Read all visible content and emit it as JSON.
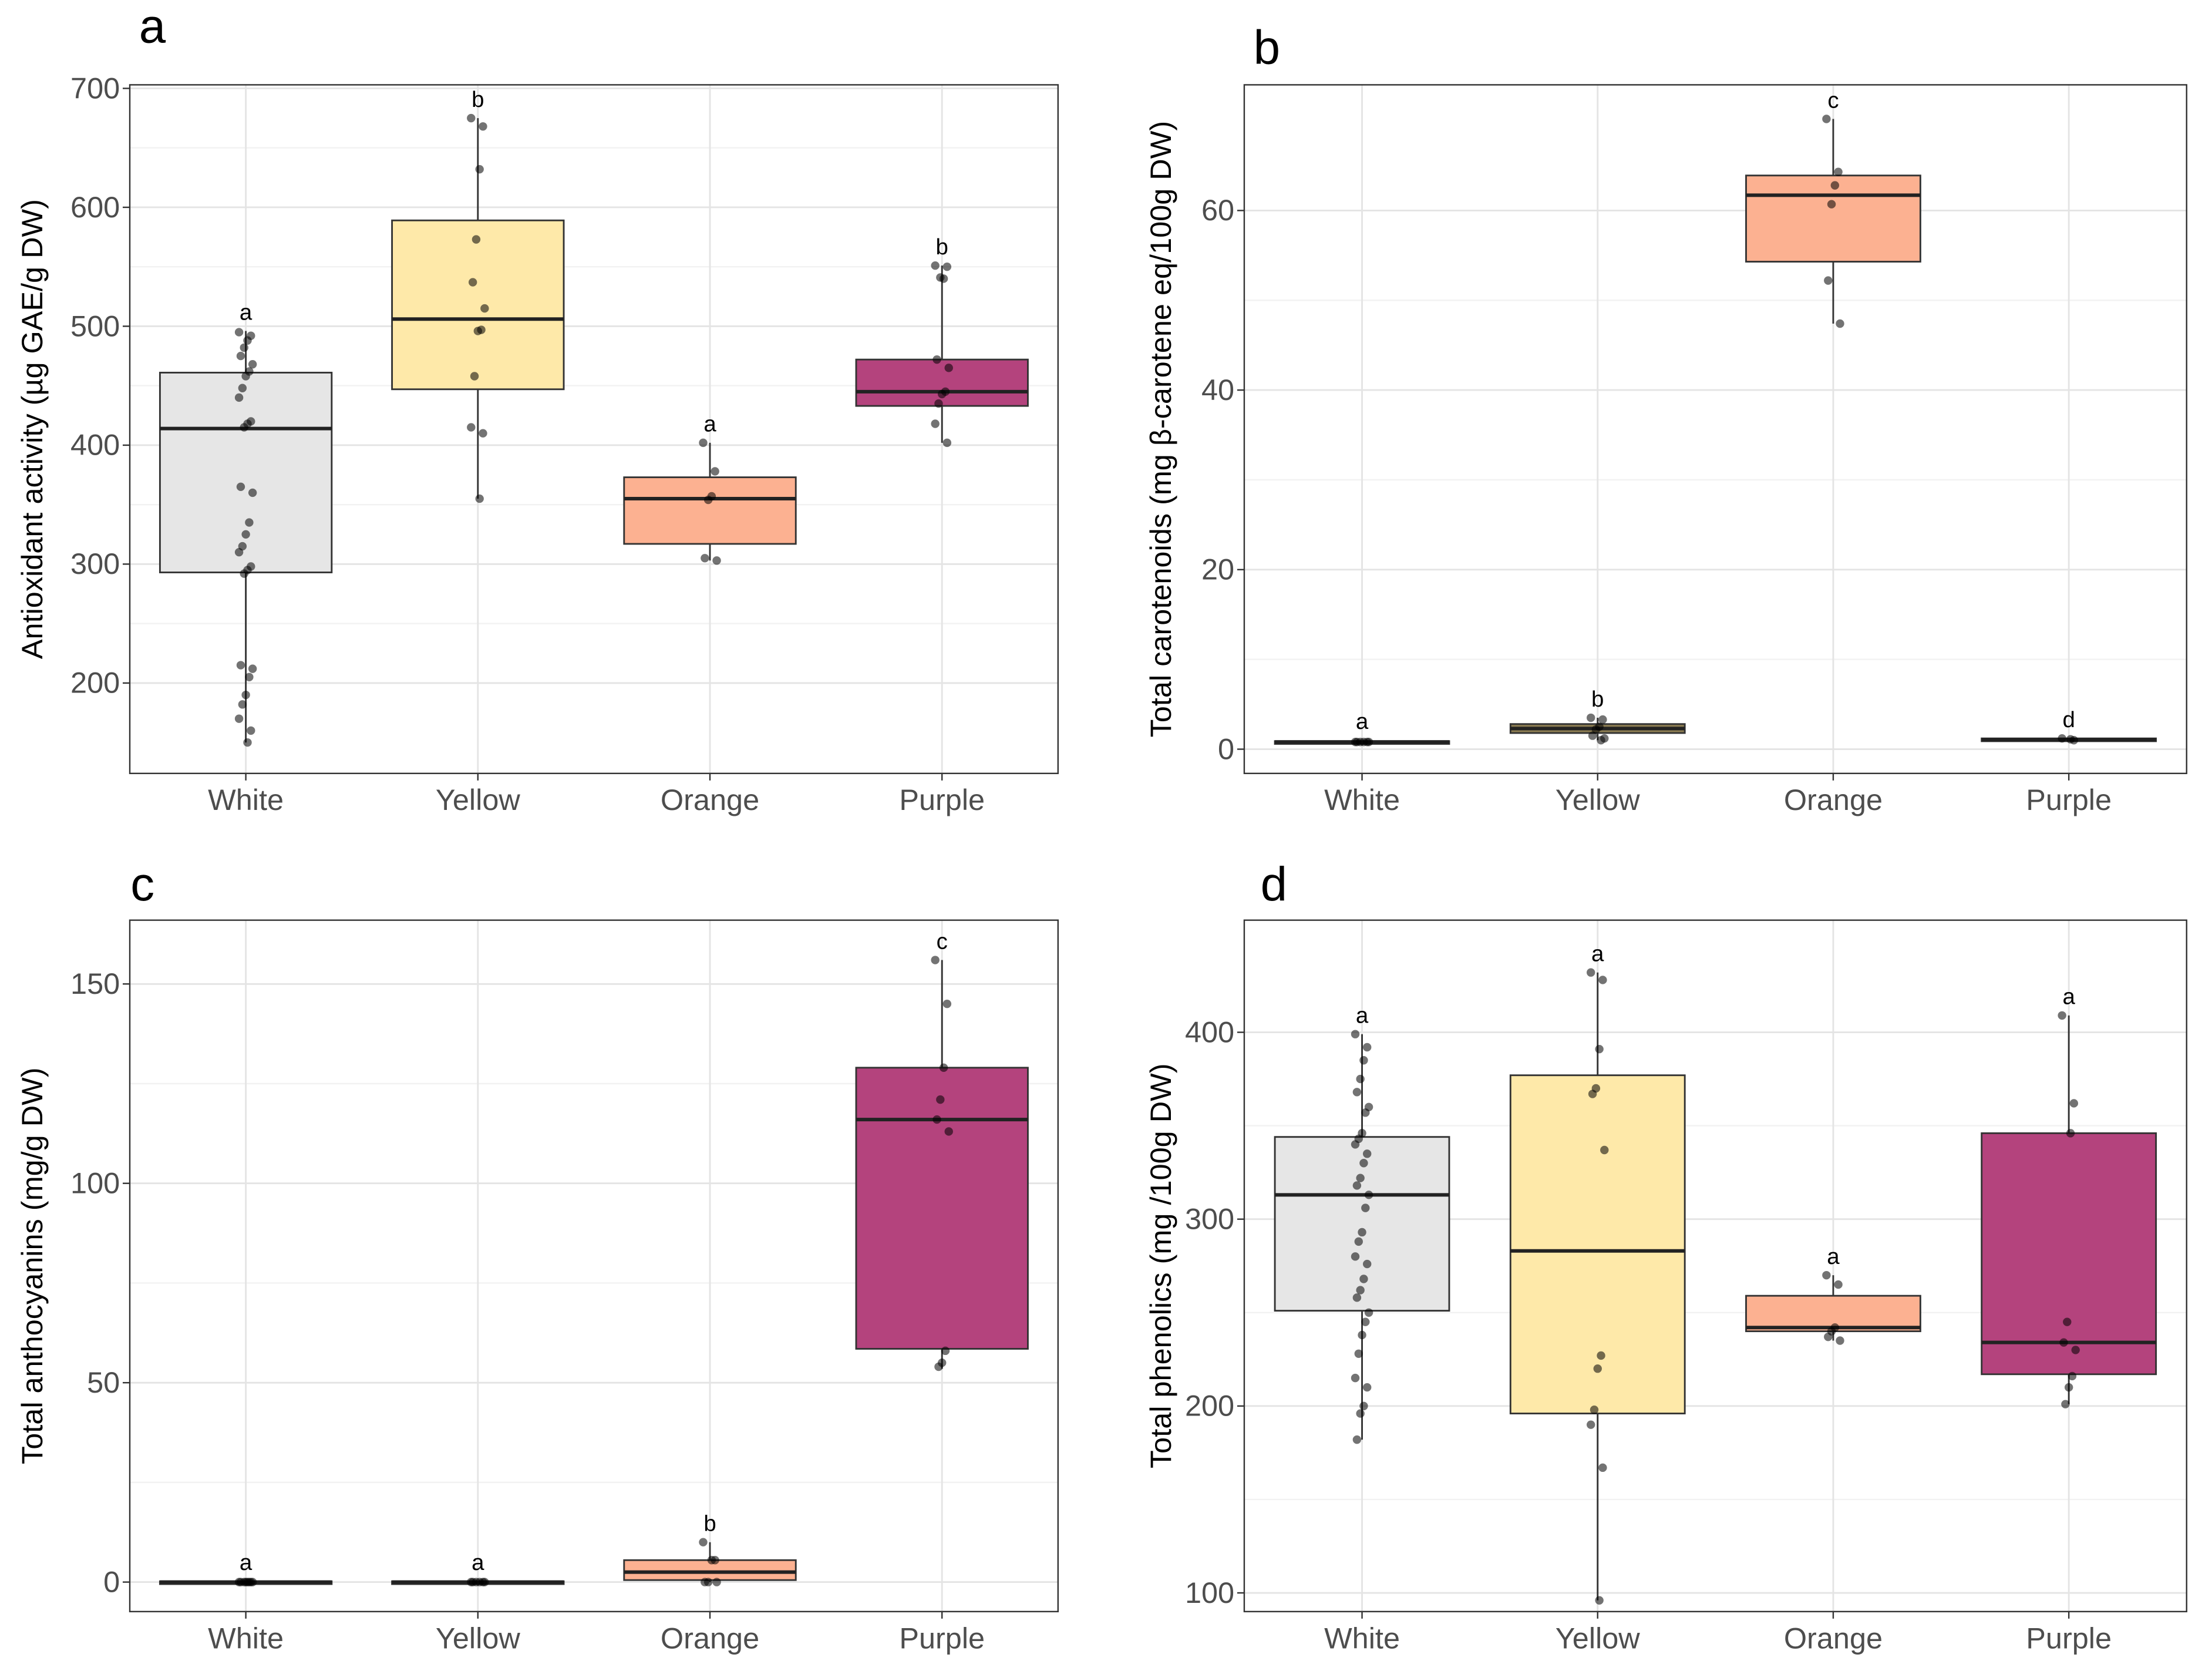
{
  "colors": {
    "White": "#e6e6e6",
    "Yellow": "#fee9a9",
    "Orange": "#fcb191",
    "Purple": "#b4437d",
    "panel_b_yellow": "#8c7d52"
  },
  "chart_data": [
    {
      "panel": "a",
      "type": "box",
      "categories": [
        "White",
        "Yellow",
        "Orange",
        "Purple"
      ],
      "ylabel": "Antioxidant activity (µg GAE/g DW)",
      "xlabel": "",
      "ylim": [
        124,
        703
      ],
      "yticks": [
        200,
        300,
        400,
        500,
        600,
        700
      ],
      "grid": true,
      "boxes": [
        {
          "q1": 293,
          "median": 414,
          "q3": 461,
          "lo": 150,
          "hi": 496,
          "sig": "a"
        },
        {
          "q1": 447,
          "median": 506,
          "q3": 589,
          "lo": 355,
          "hi": 675,
          "sig": "b"
        },
        {
          "q1": 317,
          "median": 355,
          "q3": 373,
          "lo": 303,
          "hi": 402,
          "sig": "a"
        },
        {
          "q1": 433,
          "median": 445,
          "q3": 472,
          "lo": 402,
          "hi": 551,
          "sig": "b"
        }
      ],
      "points": [
        [
          495,
          492,
          488,
          482,
          475,
          468,
          462,
          458,
          448,
          440,
          420,
          418,
          415,
          365,
          360,
          335,
          325,
          315,
          310,
          298,
          295,
          292,
          215,
          212,
          205,
          190,
          182,
          170,
          160,
          150
        ],
        [
          675,
          668,
          632,
          573,
          537,
          515,
          497,
          496,
          458,
          415,
          410,
          355
        ],
        [
          402,
          378,
          357,
          354,
          305,
          303
        ],
        [
          551,
          550,
          540,
          541,
          472,
          465,
          445,
          443,
          435,
          418,
          402
        ]
      ]
    },
    {
      "panel": "b",
      "type": "box",
      "categories": [
        "White",
        "Yellow",
        "Orange",
        "Purple"
      ],
      "ylabel": "Total carotenoids (mg β-carotene eq/100g DW)",
      "xlabel": "",
      "ylim": [
        -2.7,
        74
      ],
      "yticks": [
        0,
        20,
        40,
        60
      ],
      "grid": true,
      "boxes": [
        {
          "q1": 0.7,
          "median": 0.8,
          "q3": 0.9,
          "lo": 0.6,
          "hi": 1.0,
          "sig": "a"
        },
        {
          "q1": 1.8,
          "median": 2.3,
          "q3": 2.8,
          "lo": 1.0,
          "hi": 3.5,
          "sig": "b"
        },
        {
          "q1": 54.3,
          "median": 61.7,
          "q3": 63.9,
          "lo": 47.4,
          "hi": 70.2,
          "sig": "c"
        },
        {
          "q1": 0.9,
          "median": 1.05,
          "q3": 1.2,
          "lo": 0.9,
          "hi": 1.2,
          "sig": "d"
        }
      ],
      "points": [
        [
          0.8,
          0.8,
          0.8,
          0.8,
          0.8,
          0.8
        ],
        [
          3.5,
          3.3,
          2.5,
          2.2,
          1.5,
          1.2,
          1.0
        ],
        [
          70.2,
          64.3,
          62.8,
          60.7,
          52.2,
          47.4
        ],
        [
          1.2,
          1.0,
          1.1
        ]
      ]
    },
    {
      "panel": "c",
      "type": "box",
      "categories": [
        "White",
        "Yellow",
        "Orange",
        "Purple"
      ],
      "ylabel": "Total anthocyanins (mg/g DW)",
      "xlabel": "",
      "ylim": [
        -7.4,
        166
      ],
      "yticks": [
        0,
        50,
        100,
        150
      ],
      "grid": true,
      "boxes": [
        {
          "q1": 0,
          "median": 0,
          "q3": 0.2,
          "lo": 0,
          "hi": 0.2,
          "sig": "a"
        },
        {
          "q1": 0,
          "median": 0,
          "q3": 0.2,
          "lo": 0,
          "hi": 0.2,
          "sig": "a"
        },
        {
          "q1": 0.5,
          "median": 2.5,
          "q3": 5.5,
          "lo": 0,
          "hi": 10,
          "sig": "b"
        },
        {
          "q1": 58.5,
          "median": 116,
          "q3": 129,
          "lo": 53.5,
          "hi": 156,
          "sig": "c"
        }
      ],
      "points": [
        [
          0,
          0,
          0,
          0,
          0,
          0,
          0,
          0
        ],
        [
          0,
          0,
          0,
          0,
          0,
          0
        ],
        [
          10,
          5.5,
          5.5,
          0,
          0,
          0
        ],
        [
          156,
          145,
          129,
          121,
          116,
          113,
          58,
          55,
          54
        ]
      ]
    },
    {
      "panel": "d",
      "type": "box",
      "categories": [
        "White",
        "Yellow",
        "Orange",
        "Purple"
      ],
      "ylabel": "Total phenolics (mg /100g DW)",
      "xlabel": "",
      "ylim": [
        90,
        460
      ],
      "yticks": [
        100,
        200,
        300,
        400
      ],
      "grid": true,
      "boxes": [
        {
          "q1": 251,
          "median": 313,
          "q3": 344,
          "lo": 182,
          "hi": 399,
          "sig": "a"
        },
        {
          "q1": 196,
          "median": 283,
          "q3": 377,
          "lo": 96,
          "hi": 432,
          "sig": "a"
        },
        {
          "q1": 240,
          "median": 242,
          "q3": 259,
          "lo": 235,
          "hi": 270,
          "sig": "a"
        },
        {
          "q1": 217,
          "median": 234,
          "q3": 346,
          "lo": 201,
          "hi": 409,
          "sig": "a"
        }
      ],
      "points": [
        [
          399,
          392,
          385,
          375,
          368,
          360,
          357,
          346,
          343,
          340,
          335,
          330,
          322,
          318,
          313,
          306,
          293,
          288,
          280,
          276,
          268,
          262,
          258,
          250,
          245,
          238,
          228,
          215,
          210,
          200,
          196,
          182
        ],
        [
          432,
          428,
          391,
          370,
          367,
          337,
          227,
          220,
          198,
          190,
          167,
          96
        ],
        [
          270,
          265,
          242,
          240,
          237,
          235
        ],
        [
          409,
          362,
          346,
          245,
          234,
          230,
          216,
          210,
          201
        ]
      ]
    }
  ]
}
